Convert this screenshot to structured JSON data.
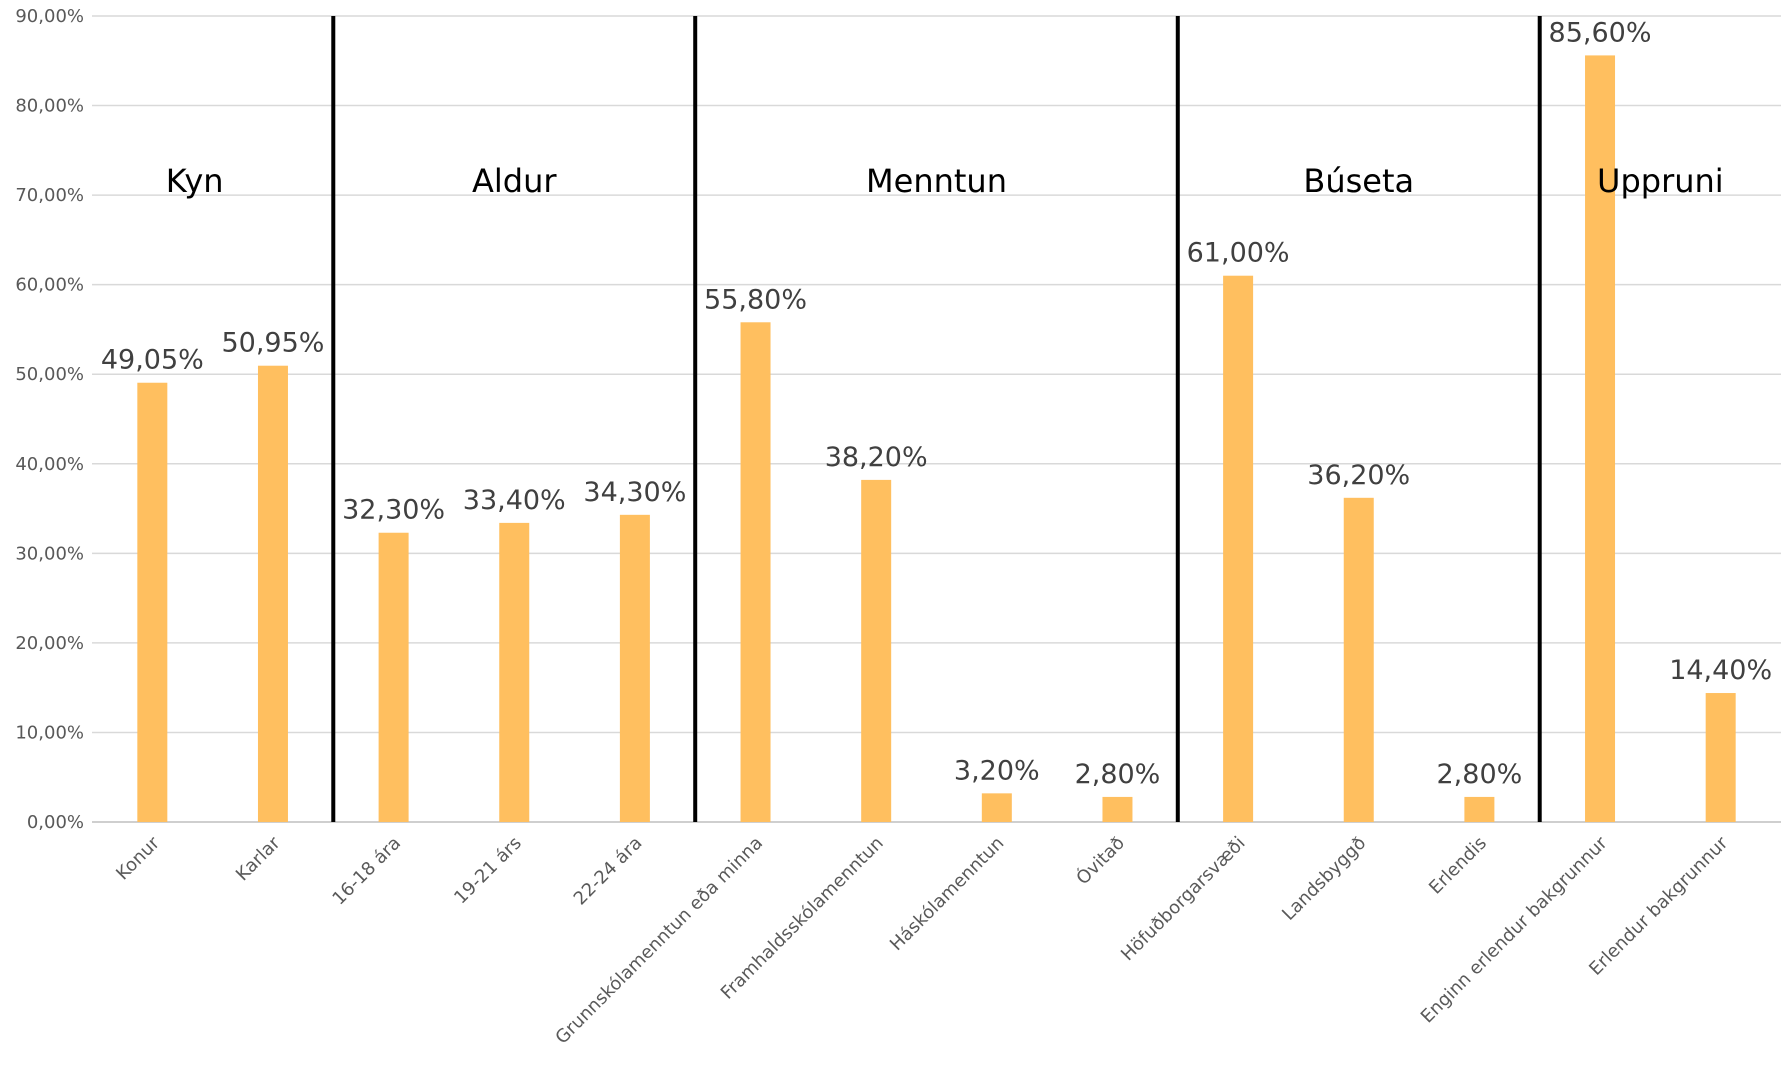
{
  "chart_data": {
    "type": "bar",
    "title": "",
    "xlabel": "",
    "ylabel": "",
    "ylim": [
      0,
      90
    ],
    "y_ticks": [
      "0,00%",
      "10,00%",
      "20,00%",
      "30,00%",
      "40,00%",
      "50,00%",
      "60,00%",
      "70,00%",
      "80,00%",
      "90,00%"
    ],
    "grid": true,
    "bar_color": "#ffbf5f",
    "categories": [
      "Konur",
      "Karlar",
      "16-18 ára",
      "19-21 árs",
      "22-24 ára",
      "Grunnskólamenntun eða minna",
      "Framhaldsskólamenntun",
      "Háskólamenntun",
      "Óvitað",
      "Höfuðborgarsvæði",
      "Landsbyggð",
      "Erlendis",
      "Enginn erlendur bakgrunnur",
      "Erlendur bakgrunnur"
    ],
    "values": [
      49.05,
      50.95,
      32.3,
      33.4,
      34.3,
      55.8,
      38.2,
      3.2,
      2.8,
      61.0,
      36.2,
      2.8,
      85.6,
      14.4
    ],
    "data_labels": [
      "49,05%",
      "50,95%",
      "32,30%",
      "33,40%",
      "34,30%",
      "55,80%",
      "38,20%",
      "3,20%",
      "2,80%",
      "61,00%",
      "36,20%",
      "2,80%",
      "85,60%",
      "14,40%"
    ],
    "groups": [
      {
        "name": "Kyn",
        "count": 2
      },
      {
        "name": "Aldur",
        "count": 3
      },
      {
        "name": "Menntun",
        "count": 4
      },
      {
        "name": "Búseta",
        "count": 3
      },
      {
        "name": "Uppruni",
        "count": 2
      }
    ]
  }
}
